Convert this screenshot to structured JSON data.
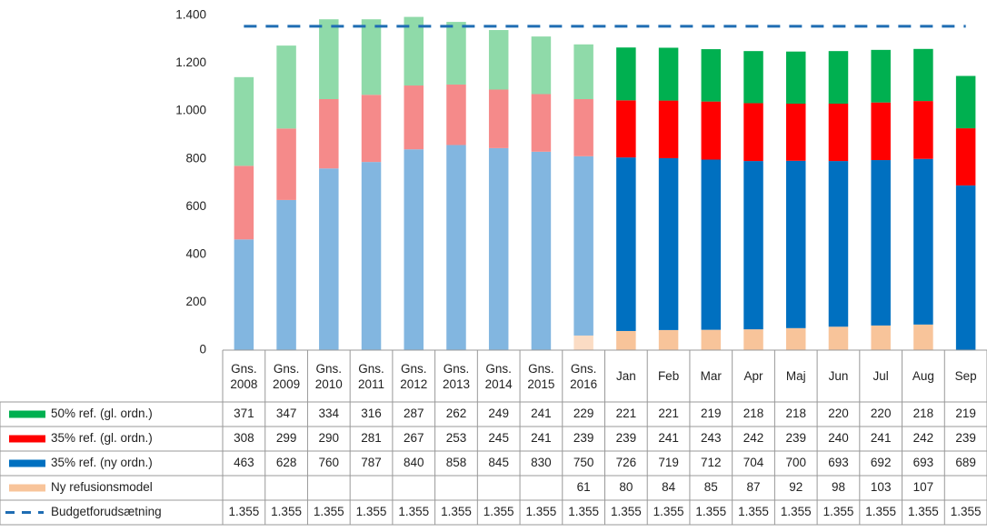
{
  "chart_data": {
    "type": "bar",
    "stacked": true,
    "categories": [
      "Gns. 2008",
      "Gns. 2009",
      "Gns. 2010",
      "Gns. 2011",
      "Gns. 2012",
      "Gns. 2013",
      "Gns. 2014",
      "Gns. 2015",
      "Gns. 2016",
      "Jan",
      "Feb",
      "Mar",
      "Apr",
      "Maj",
      "Jun",
      "Jul",
      "Aug",
      "Sep"
    ],
    "ylim": [
      0,
      1400
    ],
    "yticks": [
      0,
      200,
      400,
      600,
      800,
      {
        "value": 1000,
        "label": "1.000"
      },
      {
        "value": 1200,
        "label": "1.200"
      },
      {
        "value": 1400,
        "label": "1.400"
      }
    ],
    "series": [
      {
        "name": "50% ref. (gl. ordn.)",
        "color": "#00b050",
        "colors": [
          "#8fdaa9",
          "#8fdaa9",
          "#8fdaa9",
          "#8fdaa9",
          "#8fdaa9",
          "#8fdaa9",
          "#8fdaa9",
          "#8fdaa9",
          "#8fdaa9",
          "#00b050",
          "#00b050",
          "#00b050",
          "#00b050",
          "#00b050",
          "#00b050",
          "#00b050",
          "#00b050",
          "#00b050"
        ],
        "values": [
          371,
          347,
          334,
          316,
          287,
          262,
          249,
          241,
          229,
          221,
          221,
          219,
          218,
          218,
          220,
          220,
          218,
          219
        ]
      },
      {
        "name": "35% ref. (gl. ordn.)",
        "color": "#ff0000",
        "colors": [
          "#f58a8a",
          "#f58a8a",
          "#f58a8a",
          "#f58a8a",
          "#f58a8a",
          "#f58a8a",
          "#f58a8a",
          "#f58a8a",
          "#f58a8a",
          "#ff0000",
          "#ff0000",
          "#ff0000",
          "#ff0000",
          "#ff0000",
          "#ff0000",
          "#ff0000",
          "#ff0000",
          "#ff0000"
        ],
        "values": [
          308,
          299,
          290,
          281,
          267,
          253,
          245,
          241,
          239,
          239,
          241,
          243,
          242,
          239,
          240,
          241,
          242,
          239
        ]
      },
      {
        "name": "35% ref. (ny ordn.)",
        "color": "#0070c0",
        "colors": [
          "#82b6e0",
          "#82b6e0",
          "#82b6e0",
          "#82b6e0",
          "#82b6e0",
          "#82b6e0",
          "#82b6e0",
          "#82b6e0",
          "#82b6e0",
          "#0070c0",
          "#0070c0",
          "#0070c0",
          "#0070c0",
          "#0070c0",
          "#0070c0",
          "#0070c0",
          "#0070c0",
          "#0070c0"
        ],
        "values": [
          463,
          628,
          760,
          787,
          840,
          858,
          845,
          830,
          750,
          726,
          719,
          712,
          704,
          700,
          693,
          692,
          693,
          689
        ]
      },
      {
        "name": "Ny refusionsmodel",
        "color": "#f8c49a",
        "colors": [
          "#fbdcc4",
          "#fbdcc4",
          "#fbdcc4",
          "#fbdcc4",
          "#fbdcc4",
          "#fbdcc4",
          "#fbdcc4",
          "#fbdcc4",
          "#fbdcc4",
          "#f8c49a",
          "#f8c49a",
          "#f8c49a",
          "#f8c49a",
          "#f8c49a",
          "#f8c49a",
          "#f8c49a",
          "#f8c49a",
          "#f8c49a"
        ],
        "values": [
          null,
          null,
          null,
          null,
          null,
          null,
          null,
          null,
          61,
          80,
          84,
          85,
          87,
          92,
          98,
          103,
          107,
          null
        ]
      },
      {
        "name": "Budgetforudsætning",
        "type": "line",
        "dashed": true,
        "color": "#1f6db3",
        "values": [
          1355,
          1355,
          1355,
          1355,
          1355,
          1355,
          1355,
          1355,
          1355,
          1355,
          1355,
          1355,
          1355,
          1355,
          1355,
          1355,
          1355,
          1355
        ],
        "value_labels": [
          "1.355",
          "1.355",
          "1.355",
          "1.355",
          "1.355",
          "1.355",
          "1.355",
          "1.355",
          "1.355",
          "1.355",
          "1.355",
          "1.355",
          "1.355",
          "1.355",
          "1.355",
          "1.355",
          "1.355",
          "1.355"
        ]
      }
    ]
  }
}
